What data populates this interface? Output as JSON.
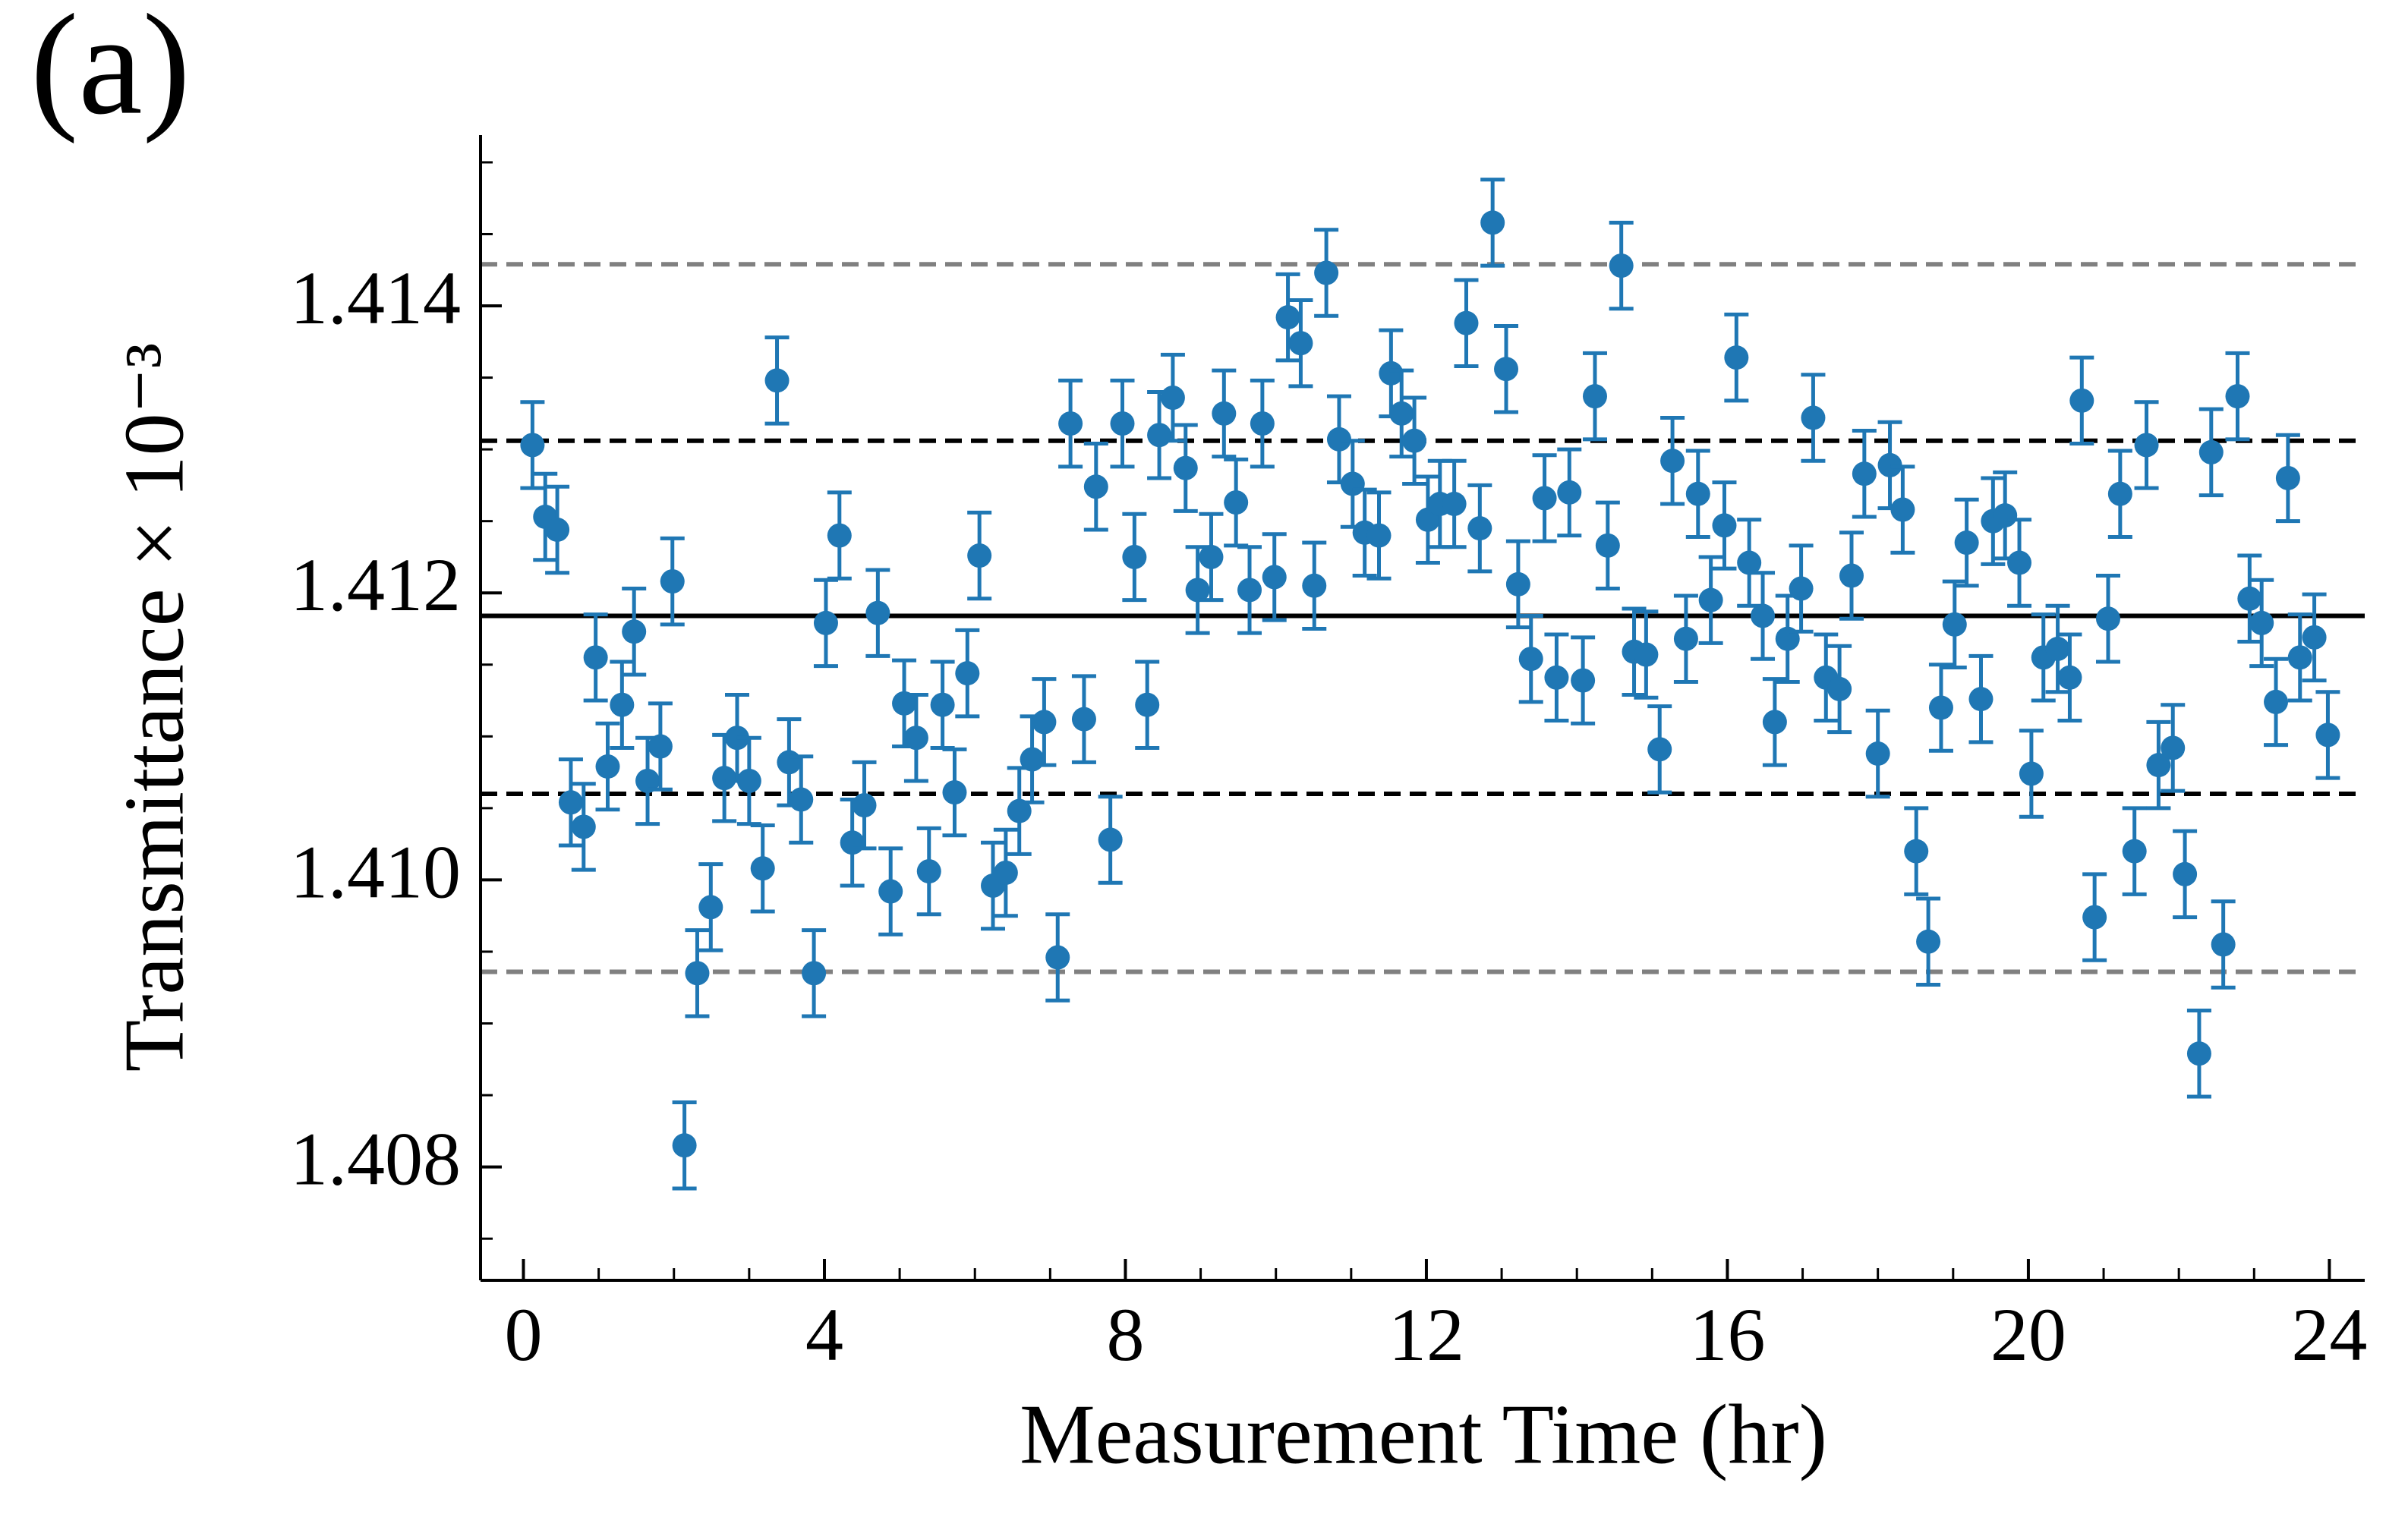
{
  "chart_data": {
    "type": "scatter",
    "title": "(a)",
    "xlabel": "Measurement Time (hr)",
    "ylabel": "Transmittance × 10⁻³",
    "xlim": [
      -0.57,
      24.47
    ],
    "ylim": [
      1.40721,
      1.41519
    ],
    "xticks": [
      0,
      4,
      8,
      12,
      16,
      20,
      24
    ],
    "xminorticks": [
      1,
      2,
      3,
      5,
      6,
      7,
      9,
      10,
      11,
      13,
      14,
      15,
      17,
      18,
      19,
      21,
      22,
      23
    ],
    "yticks": [
      1.408,
      {
        "value": 1.41,
        "label": "1.410"
      },
      1.412,
      1.414
    ],
    "yminorticks": [
      1.4075,
      1.4085,
      1.409,
      1.4095,
      1.4105,
      1.411,
      1.4115,
      1.4125,
      1.413,
      1.4135,
      1.4145,
      1.415
    ],
    "grid": false,
    "hlines": [
      {
        "value": 1.41184,
        "color": "#000000",
        "style": "solid"
      },
      {
        "value": 1.41306,
        "color": "#000000",
        "style": "dashed"
      },
      {
        "value": 1.4106,
        "color": "#000000",
        "style": "dashed"
      },
      {
        "value": 1.41429,
        "color": "#808080",
        "style": "dashed"
      },
      {
        "value": 1.40936,
        "color": "#808080",
        "style": "dashed"
      }
    ],
    "series": [
      {
        "color": "#1f77b4",
        "x": [
          0.12,
          0.29,
          0.45,
          0.63,
          0.8,
          0.96,
          1.12,
          1.31,
          1.47,
          1.65,
          1.82,
          1.98,
          2.14,
          2.31,
          2.49,
          2.67,
          2.84,
          3.0,
          3.18,
          3.37,
          3.53,
          3.69,
          3.86,
          4.02,
          4.2,
          4.37,
          4.53,
          4.71,
          4.88,
          5.06,
          5.22,
          5.39,
          5.57,
          5.73,
          5.9,
          6.06,
          6.24,
          6.41,
          6.59,
          6.76,
          6.92,
          7.1,
          7.27,
          7.45,
          7.61,
          7.8,
          7.96,
          8.12,
          8.29,
          8.45,
          8.63,
          8.8,
          8.96,
          9.14,
          9.31,
          9.47,
          9.65,
          9.82,
          9.98,
          10.16,
          10.33,
          10.51,
          10.67,
          10.84,
          11.02,
          11.18,
          11.37,
          11.53,
          11.67,
          11.84,
          12.02,
          12.18,
          12.37,
          12.53,
          12.71,
          12.88,
          13.06,
          13.22,
          13.39,
          13.57,
          13.73,
          13.9,
          14.08,
          14.24,
          14.41,
          14.59,
          14.76,
          14.92,
          15.1,
          15.27,
          15.45,
          15.61,
          15.78,
          15.96,
          16.12,
          16.29,
          16.47,
          16.63,
          16.8,
          16.98,
          17.14,
          17.31,
          17.49,
          17.65,
          17.82,
          18.0,
          18.16,
          18.33,
          18.51,
          18.67,
          18.84,
          19.02,
          19.18,
          19.37,
          19.53,
          19.69,
          19.88,
          20.04,
          20.2,
          20.39,
          20.55,
          20.71,
          20.88,
          21.06,
          21.22,
          21.41,
          21.57,
          21.73,
          21.92,
          22.08,
          22.27,
          22.43,
          22.59,
          22.78,
          22.94,
          23.1,
          23.29,
          23.45,
          23.61,
          23.8,
          23.98
        ],
        "values": [
          1.41303,
          1.41253,
          1.41244,
          1.41054,
          1.41037,
          1.41155,
          1.41079,
          1.41122,
          1.41173,
          1.41069,
          1.41093,
          1.41208,
          1.40815,
          1.40935,
          1.40981,
          1.41071,
          1.41099,
          1.41069,
          1.41008,
          1.41348,
          1.41082,
          1.41056,
          1.40935,
          1.41179,
          1.4124,
          1.41026,
          1.41052,
          1.41186,
          1.40992,
          1.41123,
          1.41099,
          1.41006,
          1.41122,
          1.41061,
          1.41144,
          1.41226,
          1.40996,
          1.41005,
          1.41048,
          1.41084,
          1.4111,
          1.40946,
          1.41318,
          1.41112,
          1.41274,
          1.41028,
          1.41318,
          1.41225,
          1.41122,
          1.4131,
          1.41336,
          1.41287,
          1.41202,
          1.41225,
          1.41325,
          1.41263,
          1.41202,
          1.41318,
          1.41211,
          1.41392,
          1.41374,
          1.41205,
          1.41423,
          1.41307,
          1.41276,
          1.41242,
          1.4124,
          1.41353,
          1.41325,
          1.41306,
          1.41251,
          1.41262,
          1.41262,
          1.41388,
          1.41245,
          1.41458,
          1.41356,
          1.41206,
          1.41154,
          1.41266,
          1.41141,
          1.4127,
          1.41139,
          1.41337,
          1.41233,
          1.41428,
          1.41159,
          1.41157,
          1.41091,
          1.41292,
          1.41168,
          1.41269,
          1.41195,
          1.41247,
          1.41364,
          1.41221,
          1.41184,
          1.4111,
          1.41168,
          1.41203,
          1.41322,
          1.41141,
          1.41133,
          1.41212,
          1.41283,
          1.41088,
          1.41289,
          1.41258,
          1.4102,
          1.40957,
          1.4112,
          1.41178,
          1.41235,
          1.41126,
          1.4125,
          1.41254,
          1.41221,
          1.41074,
          1.41155,
          1.41161,
          1.41141,
          1.41334,
          1.40974,
          1.41182,
          1.41269,
          1.4102,
          1.41303,
          1.4108,
          1.41092,
          1.41004,
          1.40879,
          1.41298,
          1.40955,
          1.41337,
          1.41196,
          1.41179,
          1.41124,
          1.4128,
          1.41155,
          1.41169,
          1.41101
        ],
        "errors": [
          0.0003,
          0.0003,
          0.0003,
          0.0003,
          0.0003,
          0.0003,
          0.0003,
          0.0003,
          0.0003,
          0.0003,
          0.0003,
          0.0003,
          0.0003,
          0.0003,
          0.0003,
          0.0003,
          0.0003,
          0.0003,
          0.0003,
          0.0003,
          0.0003,
          0.0003,
          0.0003,
          0.0003,
          0.0003,
          0.0003,
          0.0003,
          0.0003,
          0.0003,
          0.0003,
          0.0003,
          0.0003,
          0.0003,
          0.0003,
          0.0003,
          0.0003,
          0.0003,
          0.0003,
          0.0003,
          0.0003,
          0.0003,
          0.0003,
          0.0003,
          0.0003,
          0.0003,
          0.0003,
          0.0003,
          0.0003,
          0.0003,
          0.0003,
          0.0003,
          0.0003,
          0.0003,
          0.0003,
          0.0003,
          0.0003,
          0.0003,
          0.0003,
          0.0003,
          0.0003,
          0.0003,
          0.0003,
          0.0003,
          0.0003,
          0.0003,
          0.0003,
          0.0003,
          0.0003,
          0.0003,
          0.0003,
          0.0003,
          0.0003,
          0.0003,
          0.0003,
          0.0003,
          0.0003,
          0.0003,
          0.0003,
          0.0003,
          0.0003,
          0.0003,
          0.0003,
          0.0003,
          0.0003,
          0.0003,
          0.0003,
          0.0003,
          0.0003,
          0.0003,
          0.0003,
          0.0003,
          0.0003,
          0.0003,
          0.0003,
          0.0003,
          0.0003,
          0.0003,
          0.0003,
          0.0003,
          0.0003,
          0.0003,
          0.0003,
          0.0003,
          0.0003,
          0.0003,
          0.0003,
          0.0003,
          0.0003,
          0.0003,
          0.0003,
          0.0003,
          0.0003,
          0.0003,
          0.0003,
          0.0003,
          0.0003,
          0.0003,
          0.0003,
          0.0003,
          0.0003,
          0.0003,
          0.0003,
          0.0003,
          0.0003,
          0.0003,
          0.0003,
          0.0003,
          0.0003,
          0.0003,
          0.0003,
          0.0003,
          0.0003,
          0.0003,
          0.0003,
          0.0003,
          0.0003,
          0.0003,
          0.0003,
          0.0003,
          0.0003,
          0.0003
        ]
      }
    ]
  }
}
